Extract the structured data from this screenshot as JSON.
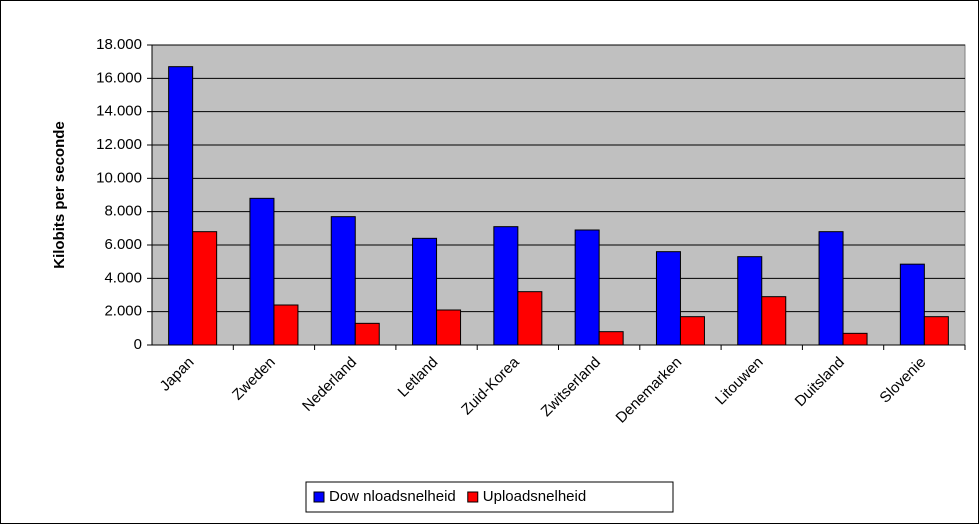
{
  "chart_data": {
    "type": "bar",
    "y_label": "Kilobits per seconde",
    "categories": [
      "Japan",
      "Zweden",
      "Nederland",
      "Letland",
      "Zuid-Korea",
      "Zwitserland",
      "Denemarken",
      "Litouwen",
      "Duitsland",
      "Slovenie"
    ],
    "series": [
      {
        "name": "Dow nloadsnelheid",
        "color": "#0000ff",
        "values": [
          16700,
          8800,
          7700,
          6400,
          7100,
          6900,
          5600,
          5300,
          6800,
          4850
        ]
      },
      {
        "name": "Uploadsnelheid",
        "color": "#ff0000",
        "values": [
          6800,
          2400,
          1300,
          2100,
          3200,
          800,
          1700,
          2900,
          700,
          1700
        ]
      }
    ],
    "ylim": [
      0,
      18000
    ],
    "yticks": [
      0,
      {
        "value": 2000,
        "label": "2.000"
      },
      {
        "value": 4000,
        "label": "4.000"
      },
      {
        "value": 6000,
        "label": "6.000"
      },
      {
        "value": 8000,
        "label": "8.000"
      },
      {
        "value": 10000,
        "label": "10.000"
      },
      {
        "value": 12000,
        "label": "12.000"
      },
      {
        "value": 14000,
        "label": "14.000"
      },
      {
        "value": 16000,
        "label": "16.000"
      },
      {
        "value": 18000,
        "label": "18.000"
      }
    ],
    "grid": true,
    "legend": "bottom",
    "plot_background": "#c0c0c0"
  }
}
